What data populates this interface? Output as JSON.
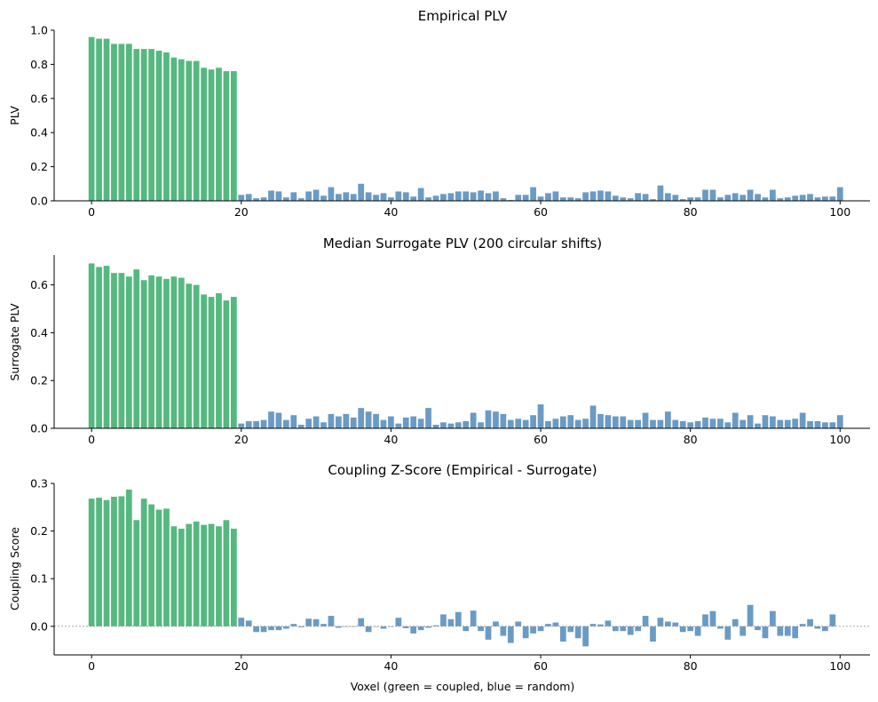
{
  "colors": {
    "coupled": "#55b87f",
    "random": "#6a9bc4",
    "axis": "#000000",
    "zeroline": "#999999"
  },
  "chart_data": [
    {
      "type": "bar",
      "title": "Empirical PLV",
      "xlabel": "",
      "ylabel": "PLV",
      "xlim": [
        -5,
        104
      ],
      "ylim": [
        0,
        1.0
      ],
      "xticks": [
        "0",
        "20",
        "40",
        "60",
        "80",
        "100"
      ],
      "yticks": [
        "0.0",
        "0.2",
        "0.4",
        "0.6",
        "0.8",
        "1.0"
      ],
      "series": [
        {
          "name": "coupled",
          "x_start": 0,
          "values": [
            0.96,
            0.95,
            0.95,
            0.92,
            0.92,
            0.92,
            0.89,
            0.89,
            0.89,
            0.88,
            0.87,
            0.84,
            0.83,
            0.82,
            0.82,
            0.78,
            0.77,
            0.78,
            0.76,
            0.76
          ]
        },
        {
          "name": "random",
          "x_start": 20,
          "values": [
            0.035,
            0.04,
            0.015,
            0.02,
            0.06,
            0.055,
            0.02,
            0.05,
            0.015,
            0.055,
            0.065,
            0.03,
            0.08,
            0.04,
            0.05,
            0.04,
            0.1,
            0.05,
            0.035,
            0.045,
            0.02,
            0.055,
            0.05,
            0.025,
            0.075,
            0.02,
            0.03,
            0.04,
            0.045,
            0.055,
            0.055,
            0.05,
            0.06,
            0.045,
            0.055,
            0.015,
            0.005,
            0.035,
            0.035,
            0.08,
            0.025,
            0.045,
            0.055,
            0.02,
            0.02,
            0.015,
            0.05,
            0.055,
            0.06,
            0.055,
            0.03,
            0.02,
            0.015,
            0.045,
            0.04,
            0.01,
            0.09,
            0.045,
            0.035,
            0.01,
            0.02,
            0.02,
            0.065,
            0.065,
            0.02,
            0.035,
            0.045,
            0.035,
            0.065,
            0.04,
            0.02,
            0.065,
            0.015,
            0.02,
            0.03,
            0.035,
            0.04,
            0.02,
            0.025,
            0.025,
            0.08
          ]
        }
      ]
    },
    {
      "type": "bar",
      "title": "Median Surrogate PLV (200 circular shifts)",
      "xlabel": "",
      "ylabel": "Surrogate PLV",
      "xlim": [
        -5,
        104
      ],
      "ylim": [
        0,
        0.725
      ],
      "xticks": [
        "0",
        "20",
        "40",
        "60",
        "80",
        "100"
      ],
      "yticks": [
        "0.0",
        "0.2",
        "0.4",
        "0.6"
      ],
      "series": [
        {
          "name": "coupled",
          "x_start": 0,
          "values": [
            0.69,
            0.675,
            0.68,
            0.65,
            0.65,
            0.635,
            0.665,
            0.62,
            0.64,
            0.635,
            0.625,
            0.635,
            0.63,
            0.605,
            0.6,
            0.56,
            0.55,
            0.565,
            0.535,
            0.55
          ]
        },
        {
          "name": "random",
          "x_start": 20,
          "values": [
            0.02,
            0.03,
            0.03,
            0.035,
            0.07,
            0.065,
            0.035,
            0.055,
            0.015,
            0.04,
            0.05,
            0.025,
            0.06,
            0.05,
            0.06,
            0.045,
            0.085,
            0.07,
            0.06,
            0.035,
            0.05,
            0.02,
            0.045,
            0.05,
            0.04,
            0.085,
            0.015,
            0.025,
            0.02,
            0.025,
            0.03,
            0.065,
            0.025,
            0.075,
            0.07,
            0.06,
            0.035,
            0.04,
            0.035,
            0.055,
            0.1,
            0.03,
            0.04,
            0.05,
            0.055,
            0.035,
            0.04,
            0.095,
            0.06,
            0.055,
            0.05,
            0.05,
            0.035,
            0.035,
            0.065,
            0.035,
            0.035,
            0.07,
            0.035,
            0.03,
            0.025,
            0.03,
            0.045,
            0.04,
            0.04,
            0.025,
            0.065,
            0.035,
            0.055,
            0.02,
            0.055,
            0.05,
            0.035,
            0.035,
            0.04,
            0.065,
            0.03,
            0.03,
            0.025,
            0.025,
            0.055
          ]
        }
      ]
    },
    {
      "type": "bar",
      "title": "Coupling Z-Score (Empirical - Surrogate)",
      "xlabel": "Voxel (green = coupled, blue = random)",
      "ylabel": "Coupling Score",
      "xlim": [
        -5,
        104
      ],
      "ylim": [
        -0.06,
        0.3
      ],
      "xticks": [
        "0",
        "20",
        "40",
        "60",
        "80",
        "100"
      ],
      "yticks": [
        "0.0",
        "0.1",
        "0.2",
        "0.3"
      ],
      "series": [
        {
          "name": "coupled",
          "x_start": 0,
          "values": [
            0.268,
            0.27,
            0.265,
            0.272,
            0.273,
            0.287,
            0.223,
            0.268,
            0.256,
            0.245,
            0.247,
            0.21,
            0.205,
            0.215,
            0.22,
            0.213,
            0.215,
            0.21,
            0.223,
            0.205
          ]
        },
        {
          "name": "random",
          "x_start": 20,
          "values": [
            0.018,
            0.012,
            -0.012,
            -0.012,
            -0.008,
            -0.008,
            -0.005,
            0.005,
            -0.002,
            0.016,
            0.015,
            0.005,
            0.022,
            -0.003,
            0.0,
            0.0,
            0.017,
            -0.012,
            0.0,
            -0.005,
            0.0,
            0.018,
            -0.004,
            -0.015,
            -0.008,
            -0.003,
            0.002,
            0.025,
            0.015,
            0.03,
            -0.01,
            0.033,
            -0.01,
            -0.028,
            0.01,
            -0.02,
            -0.035,
            0.01,
            -0.025,
            -0.015,
            -0.01,
            0.005,
            0.008,
            -0.032,
            -0.012,
            -0.025,
            -0.042,
            0.005,
            0.004,
            0.012,
            -0.01,
            -0.01,
            -0.018,
            -0.01,
            0.022,
            -0.032,
            0.018,
            0.01,
            0.008,
            -0.012,
            -0.01,
            -0.02,
            0.025,
            0.032,
            -0.005,
            -0.028,
            0.015,
            -0.02,
            0.045,
            -0.008,
            -0.025,
            0.032,
            -0.02,
            -0.02,
            -0.025,
            0.005,
            0.015,
            -0.005,
            -0.01,
            0.025
          ]
        }
      ]
    }
  ]
}
